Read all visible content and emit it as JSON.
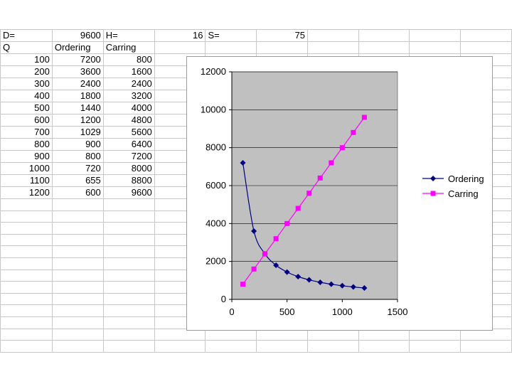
{
  "sheet": {
    "header_row": [
      "D=",
      "9600",
      "H=",
      "16",
      "S=",
      "75"
    ],
    "column_headers": [
      "Q",
      "Ordering",
      "Carring"
    ],
    "rows": [
      [
        "100",
        "7200",
        "800"
      ],
      [
        "200",
        "3600",
        "1600"
      ],
      [
        "300",
        "2400",
        "2400"
      ],
      [
        "400",
        "1800",
        "3200"
      ],
      [
        "500",
        "1440",
        "4000"
      ],
      [
        "600",
        "1200",
        "4800"
      ],
      [
        "700",
        "1029",
        "5600"
      ],
      [
        "800",
        "900",
        "6400"
      ],
      [
        "900",
        "800",
        "7200"
      ],
      [
        "1000",
        "720",
        "8000"
      ],
      [
        "1100",
        "655",
        "8800"
      ],
      [
        "1200",
        "600",
        "9600"
      ]
    ]
  },
  "chart_data": {
    "type": "scatter",
    "x": [
      100,
      200,
      300,
      400,
      500,
      600,
      700,
      800,
      900,
      1000,
      1100,
      1200
    ],
    "series": [
      {
        "name": "Ordering",
        "values": [
          7200,
          3600,
          2400,
          1800,
          1440,
          1200,
          1029,
          900,
          800,
          720,
          655,
          600
        ],
        "color": "#000080",
        "marker": "diamond",
        "line": "smooth"
      },
      {
        "name": "Carring",
        "values": [
          800,
          1600,
          2400,
          3200,
          4000,
          4800,
          5600,
          6400,
          7200,
          8000,
          8800,
          9600
        ],
        "color": "#ff00ff",
        "marker": "square",
        "line": "straight"
      }
    ],
    "xlim": [
      0,
      1500
    ],
    "ylim": [
      0,
      12000
    ],
    "xticks": [
      "0",
      "500",
      "1000",
      "1500"
    ],
    "yticks": [
      "0",
      "2000",
      "4000",
      "6000",
      "8000",
      "10000",
      "12000"
    ],
    "plot_background": "#c0c0c0",
    "grid": "horizontal",
    "legend_position": "right"
  }
}
